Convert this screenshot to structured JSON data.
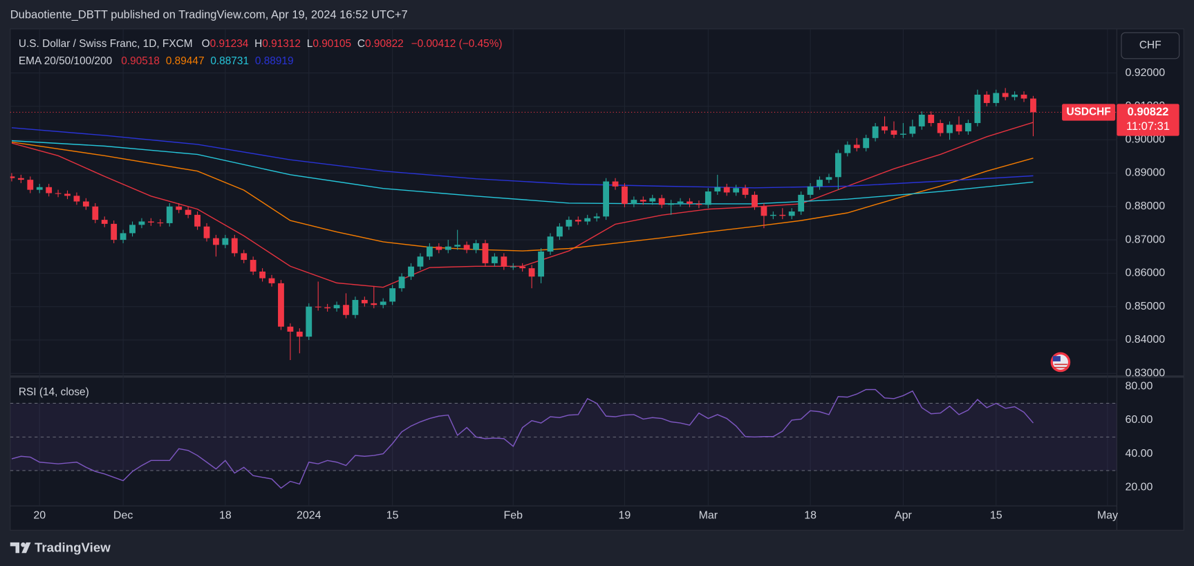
{
  "header": "Dubaotiente_DBTT published on TradingView.com, Apr 19, 2024 16:52 UTC+7",
  "footer": "TradingView",
  "chart_data": [
    {
      "type": "candlestick",
      "symbol_label": "U.S. Dollar / Swiss Franc, 1D, FXCM",
      "ohlc_labels": [
        "O",
        "H",
        "L",
        "C"
      ],
      "change_label": "−0.00412 (−0.45%)",
      "indicator_label": "EMA 20/50/100/200",
      "currency": "CHF",
      "price_tag": "USDCHF",
      "countdown": "11:07:31",
      "up_color": "#26a69a",
      "down_color": "#f23645",
      "grid": true,
      "open": [
        0.889,
        0.8885,
        0.888,
        0.885,
        0.8858,
        0.884,
        0.8838,
        0.8832,
        0.8815,
        0.88,
        0.876,
        0.8748,
        0.87,
        0.872,
        0.8745,
        0.8755,
        0.8752,
        0.875,
        0.88,
        0.879,
        0.8775,
        0.874,
        0.8705,
        0.8685,
        0.8705,
        0.866,
        0.864,
        0.8605,
        0.8585,
        0.857,
        0.844,
        0.8425,
        0.841,
        0.85,
        0.8498,
        0.8495,
        0.8505,
        0.8475,
        0.852,
        0.851,
        0.8505,
        0.8515,
        0.8555,
        0.859,
        0.862,
        0.865,
        0.868,
        0.867,
        0.868,
        0.8685,
        0.867,
        0.869,
        0.863,
        0.865,
        0.862,
        0.862,
        0.8615,
        0.859,
        0.8665,
        0.871,
        0.874,
        0.876,
        0.8755,
        0.8765,
        0.877,
        0.8875,
        0.886,
        0.8808,
        0.882,
        0.8815,
        0.8825,
        0.8805,
        0.881,
        0.8815,
        0.8808,
        0.8805,
        0.8845,
        0.8858,
        0.8842,
        0.8855,
        0.8835,
        0.88,
        0.8772,
        0.8775,
        0.8772,
        0.8785,
        0.8835,
        0.886,
        0.888,
        0.8888,
        0.896,
        0.8985,
        0.8975,
        0.9005,
        0.904,
        0.9028,
        0.9015,
        0.9018,
        0.904,
        0.9075,
        0.905,
        0.902,
        0.9045,
        0.9025,
        0.905,
        0.9135,
        0.911,
        0.914,
        0.9128,
        0.9135,
        0.91234
      ],
      "high": [
        0.89,
        0.8895,
        0.889,
        0.8868,
        0.8868,
        0.885,
        0.8848,
        0.8842,
        0.8825,
        0.881,
        0.877,
        0.8758,
        0.873,
        0.8755,
        0.8765,
        0.8765,
        0.8762,
        0.881,
        0.881,
        0.88,
        0.8785,
        0.875,
        0.8715,
        0.8715,
        0.8715,
        0.867,
        0.865,
        0.8615,
        0.8595,
        0.858,
        0.845,
        0.8435,
        0.851,
        0.8575,
        0.8508,
        0.8515,
        0.854,
        0.853,
        0.853,
        0.856,
        0.8525,
        0.8565,
        0.86,
        0.863,
        0.866,
        0.869,
        0.869,
        0.87,
        0.873,
        0.8695,
        0.87,
        0.87,
        0.866,
        0.866,
        0.863,
        0.863,
        0.8625,
        0.8675,
        0.872,
        0.875,
        0.877,
        0.877,
        0.8775,
        0.878,
        0.8885,
        0.8885,
        0.887,
        0.883,
        0.883,
        0.8835,
        0.8835,
        0.882,
        0.8825,
        0.8825,
        0.8818,
        0.8855,
        0.8895,
        0.8868,
        0.8865,
        0.8865,
        0.8845,
        0.881,
        0.8785,
        0.8795,
        0.8795,
        0.8845,
        0.887,
        0.889,
        0.8898,
        0.897,
        0.8995,
        0.9005,
        0.9015,
        0.905,
        0.907,
        0.9055,
        0.905,
        0.906,
        0.9085,
        0.9085,
        0.906,
        0.9055,
        0.907,
        0.906,
        0.915,
        0.9145,
        0.915,
        0.9155,
        0.9145,
        0.9145,
        0.91312
      ],
      "low": [
        0.8875,
        0.887,
        0.884,
        0.884,
        0.883,
        0.8828,
        0.8822,
        0.8805,
        0.879,
        0.875,
        0.8738,
        0.869,
        0.869,
        0.871,
        0.8735,
        0.8742,
        0.874,
        0.874,
        0.878,
        0.8765,
        0.873,
        0.8695,
        0.865,
        0.8675,
        0.865,
        0.863,
        0.8595,
        0.8575,
        0.856,
        0.843,
        0.834,
        0.836,
        0.84,
        0.8488,
        0.8485,
        0.8485,
        0.8465,
        0.8465,
        0.85,
        0.8495,
        0.8495,
        0.8505,
        0.8545,
        0.858,
        0.861,
        0.864,
        0.866,
        0.866,
        0.867,
        0.866,
        0.866,
        0.862,
        0.862,
        0.861,
        0.861,
        0.8605,
        0.8555,
        0.857,
        0.8655,
        0.87,
        0.873,
        0.8745,
        0.8745,
        0.8755,
        0.876,
        0.885,
        0.8798,
        0.8798,
        0.8805,
        0.8805,
        0.8795,
        0.8775,
        0.88,
        0.8798,
        0.8795,
        0.8795,
        0.8835,
        0.8832,
        0.8832,
        0.8825,
        0.879,
        0.8735,
        0.8762,
        0.8762,
        0.8762,
        0.8775,
        0.8825,
        0.885,
        0.887,
        0.885,
        0.895,
        0.8965,
        0.8965,
        0.8995,
        0.9018,
        0.9005,
        0.9005,
        0.9008,
        0.903,
        0.904,
        0.901,
        0.9,
        0.9015,
        0.9015,
        0.904,
        0.91,
        0.91,
        0.9118,
        0.9118,
        0.9113,
        0.90105
      ],
      "close": [
        0.8885,
        0.888,
        0.885,
        0.8858,
        0.884,
        0.8838,
        0.8832,
        0.8815,
        0.88,
        0.876,
        0.8748,
        0.87,
        0.872,
        0.8745,
        0.8755,
        0.8752,
        0.875,
        0.88,
        0.879,
        0.8775,
        0.874,
        0.8705,
        0.8685,
        0.8705,
        0.866,
        0.864,
        0.8605,
        0.8585,
        0.857,
        0.844,
        0.8425,
        0.841,
        0.85,
        0.8498,
        0.8495,
        0.8505,
        0.8475,
        0.852,
        0.851,
        0.8505,
        0.8515,
        0.8555,
        0.859,
        0.862,
        0.865,
        0.868,
        0.867,
        0.868,
        0.8685,
        0.867,
        0.869,
        0.863,
        0.865,
        0.862,
        0.862,
        0.8615,
        0.859,
        0.8665,
        0.871,
        0.874,
        0.876,
        0.8755,
        0.8765,
        0.877,
        0.8875,
        0.886,
        0.8808,
        0.882,
        0.8815,
        0.8825,
        0.8805,
        0.881,
        0.8815,
        0.8808,
        0.8805,
        0.8845,
        0.8858,
        0.8842,
        0.8855,
        0.8835,
        0.88,
        0.8772,
        0.8775,
        0.8772,
        0.8785,
        0.8835,
        0.886,
        0.888,
        0.8888,
        0.896,
        0.8985,
        0.8975,
        0.9005,
        0.904,
        0.9028,
        0.9015,
        0.9018,
        0.904,
        0.9075,
        0.905,
        0.902,
        0.9045,
        0.9025,
        0.905,
        0.9135,
        0.911,
        0.914,
        0.9128,
        0.9135,
        0.91234,
        0.90822
      ],
      "series": [
        {
          "color": "#e5323f",
          "x": [
            0,
            5,
            10,
            15,
            20,
            25,
            30,
            35,
            40,
            45,
            50,
            55,
            60,
            65,
            70,
            75,
            80,
            85,
            90,
            95,
            100,
            105,
            110
          ],
          "values": [
            0.899,
            0.8952,
            0.889,
            0.8831,
            0.8792,
            0.8712,
            0.8621,
            0.8571,
            0.8558,
            0.8617,
            0.8621,
            0.8621,
            0.8667,
            0.8747,
            0.8774,
            0.8792,
            0.8799,
            0.8808,
            0.8861,
            0.8913,
            0.8956,
            0.9009,
            0.90518
          ]
        },
        {
          "color": "#f57c00",
          "x": [
            0,
            10,
            20,
            25,
            30,
            35,
            40,
            45,
            50,
            55,
            60,
            65,
            70,
            75,
            80,
            85,
            90,
            95,
            100,
            105,
            110
          ],
          "values": [
            0.8993,
            0.8952,
            0.8906,
            0.8849,
            0.8758,
            0.8724,
            0.8694,
            0.8678,
            0.8671,
            0.8667,
            0.8674,
            0.869,
            0.8706,
            0.8724,
            0.874,
            0.8758,
            0.8781,
            0.8822,
            0.8861,
            0.8906,
            0.89447
          ]
        },
        {
          "color": "#26c6da",
          "x": [
            0,
            10,
            20,
            30,
            40,
            50,
            60,
            70,
            80,
            90,
            100,
            110
          ],
          "values": [
            0.8997,
            0.8981,
            0.8956,
            0.8895,
            0.8854,
            0.8831,
            0.881,
            0.8808,
            0.8808,
            0.8822,
            0.8845,
            0.88731
          ]
        },
        {
          "color": "#2933d6",
          "x": [
            0,
            10,
            20,
            30,
            40,
            50,
            60,
            70,
            80,
            90,
            100,
            110
          ],
          "values": [
            0.9036,
            0.9013,
            0.8986,
            0.894,
            0.8906,
            0.8883,
            0.8867,
            0.8861,
            0.8856,
            0.8861,
            0.8876,
            0.88919
          ]
        }
      ],
      "xlim": [
        -0.16,
        119
      ],
      "xticks": [
        {
          "value": 3,
          "label": "20"
        },
        {
          "value": 12,
          "label": "Dec"
        },
        {
          "value": 23,
          "label": "18"
        },
        {
          "value": 32,
          "label": "2024"
        },
        {
          "value": 41,
          "label": "15"
        },
        {
          "value": 54,
          "label": "Feb"
        },
        {
          "value": 66,
          "label": "19"
        },
        {
          "value": 75,
          "label": "Mar"
        },
        {
          "value": 86,
          "label": "18"
        },
        {
          "value": 96,
          "label": "Apr"
        },
        {
          "value": 106,
          "label": "15"
        },
        {
          "value": 118,
          "label": "May"
        }
      ],
      "ylim": [
        0.8295,
        0.9332
      ],
      "yticks": [
        {
          "value": 0.92,
          "label": "0.92000"
        },
        {
          "value": 0.91,
          "label": "0.91000"
        },
        {
          "value": 0.9,
          "label": "0.90000"
        },
        {
          "value": 0.89,
          "label": "0.89000"
        },
        {
          "value": 0.88,
          "label": "0.88000"
        },
        {
          "value": 0.87,
          "label": "0.87000"
        },
        {
          "value": 0.86,
          "label": "0.86000"
        },
        {
          "value": 0.85,
          "label": "0.85000"
        },
        {
          "value": 0.84,
          "label": "0.84000"
        },
        {
          "value": 0.83,
          "label": "0.83000"
        }
      ]
    },
    {
      "type": "line",
      "title": "RSI (14, close)",
      "color": "#7e57c2",
      "levels": [
        30,
        50,
        70
      ],
      "values": [
        37,
        38.5,
        38,
        35,
        34.5,
        34,
        34.5,
        35,
        32,
        29.5,
        28,
        26,
        24,
        29.5,
        33,
        36,
        36,
        36,
        43,
        42,
        39,
        35,
        31,
        36,
        28.5,
        32,
        27,
        26,
        25,
        19.6,
        23.6,
        22,
        35,
        34,
        36,
        35,
        33,
        39,
        38.5,
        39,
        40,
        46,
        53,
        56.5,
        59,
        61,
        62.4,
        63,
        51,
        55.6,
        50,
        49,
        49.3,
        49,
        44.4,
        55.6,
        59.7,
        58.3,
        62,
        61.5,
        63,
        63.3,
        72.8,
        70,
        62.4,
        62,
        63,
        63.3,
        60.6,
        61.5,
        61,
        59,
        58.3,
        57,
        64.2,
        61,
        63.3,
        61,
        56.5,
        50.2,
        50,
        50.2,
        50.2,
        53.4,
        60,
        60.6,
        65.6,
        65,
        63.3,
        74,
        73.7,
        75.5,
        78.2,
        78.2,
        73.2,
        72.8,
        74.6,
        77.3,
        67.4,
        63.8,
        64.2,
        68.3,
        63.3,
        66,
        72.3,
        67.4,
        70,
        67,
        68,
        64.7,
        58.3
      ],
      "ylim": [
        9,
        85
      ],
      "yticks": [
        {
          "value": 80,
          "label": "80.00"
        },
        {
          "value": 60,
          "label": "60.00"
        },
        {
          "value": 40,
          "label": "40.00"
        },
        {
          "value": 20,
          "label": "20.00"
        }
      ]
    }
  ]
}
